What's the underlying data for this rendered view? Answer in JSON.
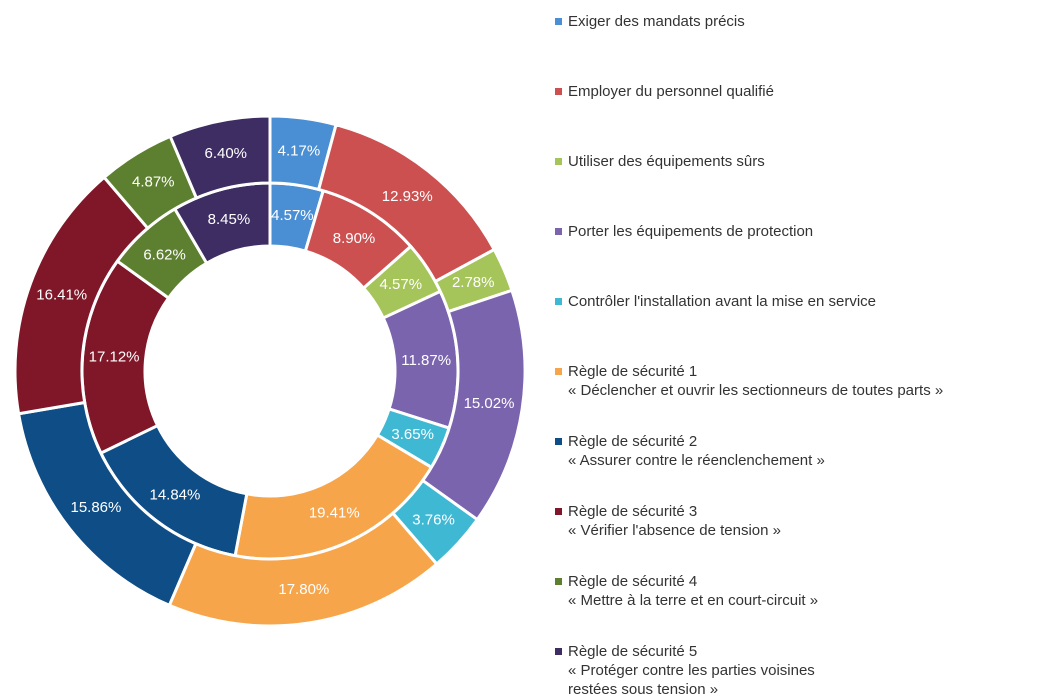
{
  "chart_data": {
    "type": "donut",
    "categories": [
      "Exiger des mandats précis",
      "Employer du personnel qualifié",
      "Utiliser des équipements sûrs",
      "Porter les équipements de protection",
      "Contrôler l'installation avant la mise en service",
      "Règle de sécurité 1\n« Déclencher et ouvrir les sectionneurs de toutes parts »",
      "Règle de sécurité 2\n« Assurer contre le réenclenchement »",
      "Règle de sécurité 3\n« Vérifier l'absence de tension »",
      "Règle de sécurité 4\n« Mettre à la terre et en court-circuit »",
      "Règle de sécurité 5\n« Protéger contre les parties voisines\nrestées sous tension »"
    ],
    "colors": [
      "#4a8fd4",
      "#cd5050",
      "#a5c45a",
      "#7b64ae",
      "#3fb8d4",
      "#f7a54a",
      "#0e4d85",
      "#7f1729",
      "#5d7f30",
      "#3e2d63"
    ],
    "series": [
      {
        "values": [
          4.57,
          8.9,
          4.57,
          11.87,
          3.65,
          19.41,
          14.84,
          17.12,
          6.62,
          8.45
        ],
        "value_labels": [
          "4.57%",
          "8.90%",
          "4.57%",
          "11.87%",
          "3.65%",
          "19.41%",
          "14.84%",
          "17.12%",
          "6.62%",
          "8.45%"
        ]
      },
      {
        "values": [
          4.17,
          12.93,
          2.78,
          15.02,
          3.76,
          17.8,
          15.86,
          16.41,
          4.87,
          6.4
        ],
        "value_labels": [
          "4.17%",
          "12.93%",
          "2.78%",
          "15.02%",
          "3.76%",
          "17.80%",
          "15.86%",
          "16.41%",
          "4.87%",
          "6.40%"
        ]
      }
    ]
  }
}
